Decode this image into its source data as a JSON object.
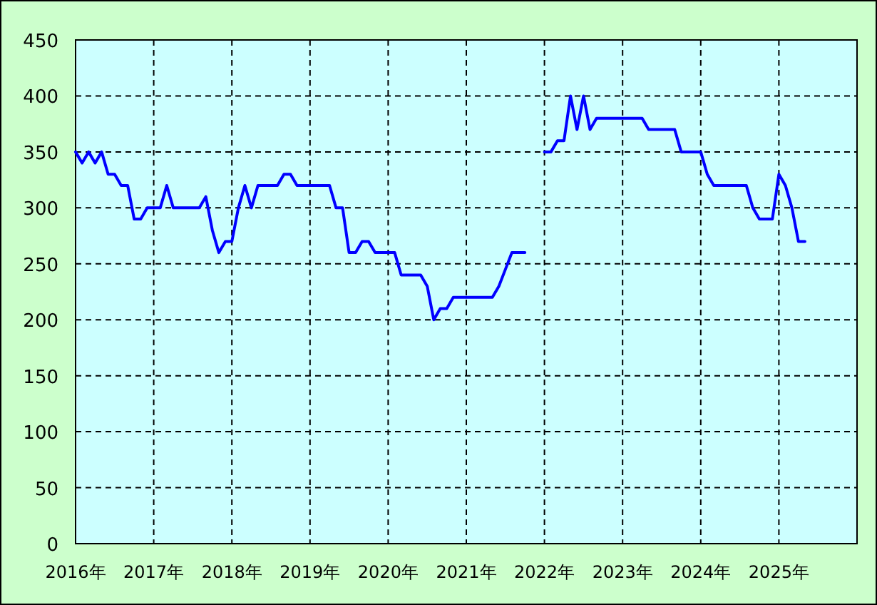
{
  "chart_data": {
    "type": "line",
    "x": [
      "2016-01",
      "2016-02",
      "2016-03",
      "2016-04",
      "2016-05",
      "2016-06",
      "2016-07",
      "2016-08",
      "2016-09",
      "2016-10",
      "2016-11",
      "2016-12",
      "2017-02",
      "2017-03",
      "2017-04",
      "2017-08",
      "2017-09",
      "2017-10",
      "2017-11",
      "2017-12",
      "2018-01",
      "2018-02",
      "2018-03",
      "2018-04",
      "2018-05",
      "2018-08",
      "2018-09",
      "2018-10",
      "2018-11",
      "2019-04",
      "2019-05",
      "2019-06",
      "2019-07",
      "2019-08",
      "2019-09",
      "2019-10",
      "2019-11",
      "2020-02",
      "2020-03",
      "2020-06",
      "2020-07",
      "2020-08",
      "2020-09",
      "2020-10",
      "2020-11",
      "2021-05",
      "2021-06",
      "2021-07",
      "2021-08",
      "2021-10",
      "2021-11",
      "2022-01",
      "2022-02",
      "2022-03",
      "2022-04",
      "2022-05",
      "2022-06",
      "2022-07",
      "2022-08",
      "2022-09",
      "2023-04",
      "2023-05",
      "2023-09",
      "2023-10",
      "2024-01",
      "2024-02",
      "2024-03",
      "2024-08",
      "2024-09",
      "2024-10",
      "2024-12",
      "2025-01",
      "2025-02",
      "2025-03",
      "2025-04",
      "2025-05"
    ],
    "series": [
      {
        "color": "#0000ff",
        "values": [
          350,
          340,
          350,
          340,
          350,
          330,
          330,
          320,
          320,
          290,
          290,
          300,
          300,
          320,
          300,
          300,
          310,
          280,
          260,
          270,
          270,
          300,
          320,
          300,
          320,
          320,
          330,
          330,
          320,
          320,
          300,
          300,
          260,
          260,
          270,
          270,
          260,
          260,
          240,
          240,
          230,
          200,
          210,
          210,
          220,
          220,
          230,
          245,
          260,
          260,
          null,
          350,
          350,
          360,
          360,
          400,
          370,
          400,
          370,
          380,
          380,
          370,
          370,
          350,
          350,
          330,
          320,
          320,
          300,
          290,
          290,
          330,
          320,
          300,
          270,
          270
        ]
      }
    ],
    "xlim": [
      "2016-01",
      "2026-01"
    ],
    "xticks": [
      {
        "value": "2016-01",
        "label": "2016年"
      },
      {
        "value": "2017-01",
        "label": "2017年"
      },
      {
        "value": "2018-01",
        "label": "2018年"
      },
      {
        "value": "2019-01",
        "label": "2019年"
      },
      {
        "value": "2020-01",
        "label": "2020年"
      },
      {
        "value": "2021-01",
        "label": "2021年"
      },
      {
        "value": "2022-01",
        "label": "2022年"
      },
      {
        "value": "2023-01",
        "label": "2023年"
      },
      {
        "value": "2024-01",
        "label": "2024年"
      },
      {
        "value": "2025-01",
        "label": "2025年"
      }
    ],
    "ylim": [
      0,
      450
    ],
    "yticks": [
      0,
      50,
      100,
      150,
      200,
      250,
      300,
      350,
      400,
      450
    ],
    "grid": true
  }
}
